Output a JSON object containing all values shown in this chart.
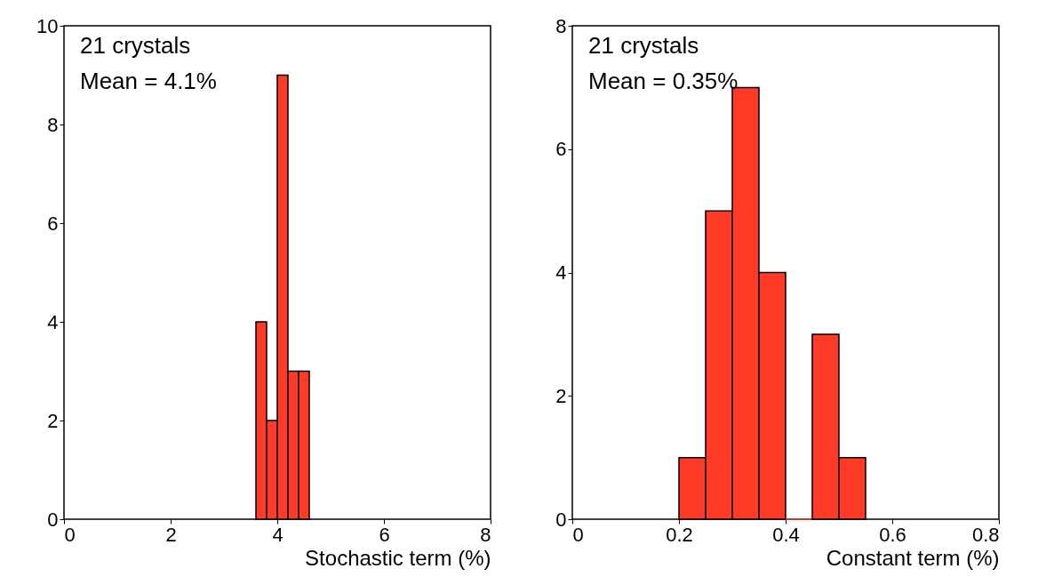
{
  "chart_data": [
    {
      "type": "histogram",
      "xlabel": "Stochastic term (%)",
      "bins": [
        3.6,
        3.8,
        4.0,
        4.2,
        4.4,
        4.6
      ],
      "values": [
        4,
        2,
        9,
        3,
        3
      ],
      "color": "#ff3b28",
      "xlim": [
        0,
        8
      ],
      "xticks": [
        0,
        2,
        4,
        6,
        8
      ],
      "ylim": [
        0,
        10
      ],
      "yticks": [
        0,
        2,
        4,
        6,
        8,
        10
      ],
      "annotations": [
        "21 crystals",
        "Mean = 4.1%"
      ]
    },
    {
      "type": "histogram",
      "xlabel": "Constant term (%)",
      "bins": [
        0.2,
        0.25,
        0.3,
        0.35,
        0.4,
        0.45,
        0.5,
        0.55
      ],
      "values": [
        1,
        5,
        7,
        4,
        0,
        3,
        1
      ],
      "color": "#ff3b28",
      "xlim": [
        0,
        0.8
      ],
      "xticks": [
        {
          "value": 0,
          "label": "0"
        },
        0.2,
        0.4,
        0.6,
        0.8
      ],
      "ylim": [
        0,
        8
      ],
      "yticks": [
        0,
        2,
        4,
        6,
        8
      ],
      "annotations": [
        "21 crystals",
        "Mean = 0.35%"
      ]
    }
  ]
}
